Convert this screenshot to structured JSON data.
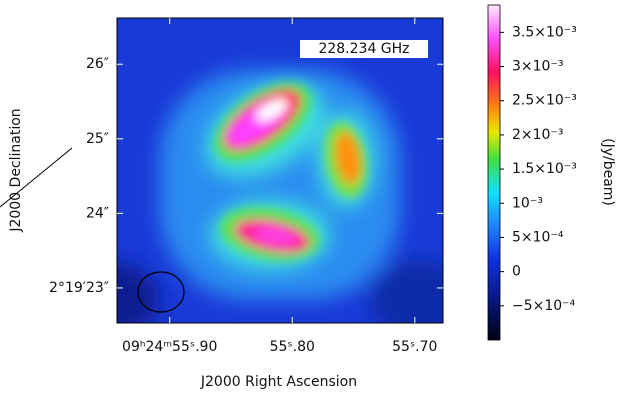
{
  "chart_data": {
    "type": "heatmap",
    "frequency_label": "228.234 GHz",
    "x_label": "J2000 Right Ascension",
    "y_label": "J2000 Declination",
    "colorbar_label": "(Jy/beam)",
    "xlim": [
      55.943,
      55.677
    ],
    "xticks": [
      {
        "value": 55.9,
        "label": "09ʰ24ᵐ55ˢ.90"
      },
      {
        "value": 55.8,
        "label": "55ˢ.80"
      },
      {
        "value": 55.7,
        "label": "55ˢ.70"
      }
    ],
    "ylim": [
      22.53,
      26.62
    ],
    "yticks": [
      {
        "value": 23,
        "label": "2°19′23″"
      },
      {
        "value": 24,
        "label": "24″"
      },
      {
        "value": 25,
        "label": "25″"
      },
      {
        "value": 26,
        "label": "26″"
      }
    ],
    "clim": [
      -0.001,
      0.0039
    ],
    "cticks": [
      {
        "value": 0.0035,
        "label": "3.5×10⁻³"
      },
      {
        "value": 0.003,
        "label": "3×10⁻³"
      },
      {
        "value": 0.0025,
        "label": "2.5×10⁻³"
      },
      {
        "value": 0.002,
        "label": "2×10⁻³"
      },
      {
        "value": 0.0015,
        "label": "1.5×10⁻³"
      },
      {
        "value": 0.001,
        "label": "10⁻³"
      },
      {
        "value": 0.0005,
        "label": "5×10⁻⁴"
      },
      {
        "value": 0,
        "label": "0"
      },
      {
        "value": -0.0005,
        "label": "−5×10⁻⁴"
      }
    ]
  }
}
